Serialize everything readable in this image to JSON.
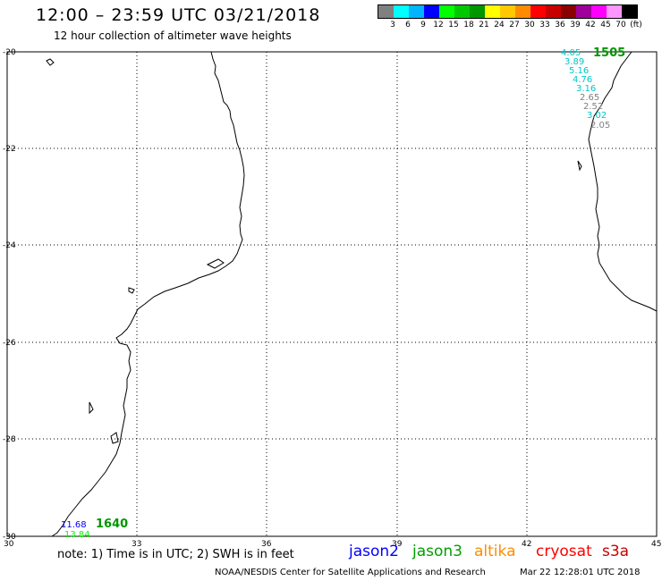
{
  "header": {
    "title": "12:00 – 23:59 UTC 03/21/2018",
    "subtitle": "12 hour collection of altimeter wave heights"
  },
  "legend": {
    "colors": [
      "#808080",
      "#00ffff",
      "#00b4ff",
      "#0000ff",
      "#00ff00",
      "#00c800",
      "#009600",
      "#ffff00",
      "#ffc800",
      "#ff8c00",
      "#ff0000",
      "#c80000",
      "#8b0000",
      "#a0009a",
      "#ff00ff",
      "#ff96ff",
      "#000000"
    ],
    "labels": [
      "3",
      "6",
      "9",
      "12",
      "15",
      "18",
      "21",
      "24",
      "27",
      "30",
      "33",
      "36",
      "39",
      "42",
      "45",
      "70",
      "(ft)"
    ]
  },
  "axes": {
    "y_labels": [
      "-20",
      "-22",
      "-24",
      "-26",
      "-28",
      "-30"
    ],
    "x_labels": [
      "30",
      "33",
      "36",
      "39",
      "42",
      "45"
    ]
  },
  "observations": {
    "east_track": {
      "time": "1505",
      "time_color": "#009600",
      "values": [
        {
          "text": "4.05",
          "color": "#00c8c8"
        },
        {
          "text": "3.89",
          "color": "#00c8c8"
        },
        {
          "text": "5.16",
          "color": "#00c8c8"
        },
        {
          "text": "4.76",
          "color": "#00c8c8"
        },
        {
          "text": "3.16",
          "color": "#00c8c8"
        },
        {
          "text": "2.65",
          "color": "#808080"
        },
        {
          "text": "2.52",
          "color": "#808080"
        },
        {
          "text": "3.02",
          "color": "#00c8c8"
        },
        {
          "text": "2.05",
          "color": "#808080"
        }
      ]
    },
    "west_track": {
      "time": "1640",
      "time_color": "#009600",
      "values": [
        {
          "text": "11.68",
          "color": "#0000ff"
        },
        {
          "text": "13.84",
          "color": "#00ff00"
        }
      ]
    }
  },
  "footer": {
    "note": "note:  1) Time is in UTC;  2) SWH is in feet",
    "satellites": [
      {
        "name": "jason2",
        "color": "#0000ff"
      },
      {
        "name": "jason3",
        "color": "#00a000"
      },
      {
        "name": "altika",
        "color": "#ff8c00"
      },
      {
        "name": "cryosat",
        "color": "#ff0000"
      },
      {
        "name": "s3a",
        "color": "#c80000"
      }
    ],
    "credit": "NOAA/NESDIS Center for Satellite Applications and Research",
    "timestamp": "Mar 22 12:28:01 UTC 2018"
  }
}
